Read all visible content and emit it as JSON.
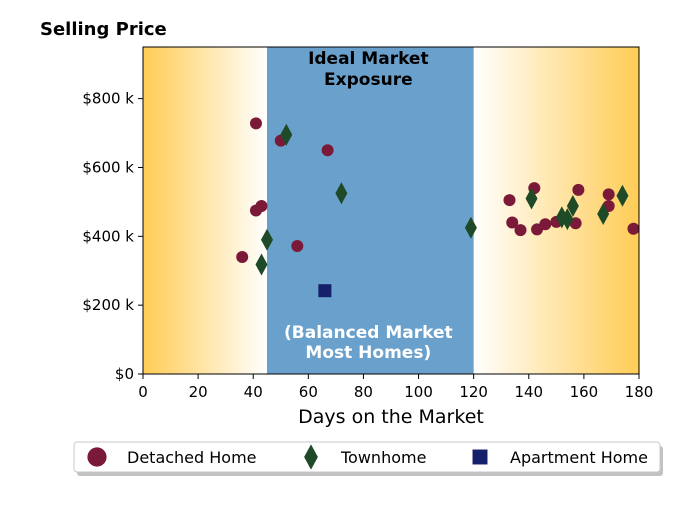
{
  "chart_data": {
    "type": "scatter",
    "title": "Selling Price",
    "xlabel": "Days on the Market",
    "ylabel": "",
    "xlim": [
      0,
      180
    ],
    "ylim": [
      0,
      950000
    ],
    "x_ticks": [
      0,
      20,
      40,
      60,
      80,
      100,
      120,
      140,
      160,
      180
    ],
    "x_tick_labels": [
      "0",
      "20",
      "40",
      "60",
      "80",
      "100",
      "120",
      "140",
      "160",
      "180"
    ],
    "y_ticks": [
      0,
      200000,
      400000,
      600000,
      800000
    ],
    "y_tick_labels": [
      "$0",
      "$200 k",
      "$400 k",
      "$600 k",
      "$800 k"
    ],
    "grid": false,
    "legend_position": "bottom",
    "shaded_region": {
      "x_range": [
        45,
        120
      ],
      "color": "#6aa0cc",
      "label_top": [
        "Ideal Market",
        "Exposure"
      ],
      "label_bottom": [
        "(Balanced Market",
        "Most Homes)"
      ]
    },
    "background_gradient": {
      "edge_color": "#ffcc55",
      "center_color": "#ffffff"
    },
    "series": [
      {
        "name": "Detached Home",
        "marker": "circle",
        "color": "#7b1a38",
        "points": [
          [
            36,
            340000
          ],
          [
            41,
            728000
          ],
          [
            41,
            475000
          ],
          [
            43,
            488000
          ],
          [
            50,
            678000
          ],
          [
            56,
            372000
          ],
          [
            67,
            650000
          ],
          [
            133,
            505000
          ],
          [
            134,
            440000
          ],
          [
            137,
            418000
          ],
          [
            142,
            540000
          ],
          [
            143,
            420000
          ],
          [
            146,
            435000
          ],
          [
            150,
            442000
          ],
          [
            157,
            438000
          ],
          [
            158,
            535000
          ],
          [
            169,
            522000
          ],
          [
            169,
            488000
          ],
          [
            178,
            422000
          ]
        ]
      },
      {
        "name": "Townhome",
        "marker": "diamond",
        "color": "#1e4a28",
        "points": [
          [
            43,
            318000
          ],
          [
            45,
            390000
          ],
          [
            52,
            695000
          ],
          [
            72,
            525000
          ],
          [
            119,
            425000
          ],
          [
            141,
            510000
          ],
          [
            152,
            455000
          ],
          [
            154,
            450000
          ],
          [
            156,
            488000
          ],
          [
            167,
            465000
          ],
          [
            174,
            518000
          ]
        ]
      },
      {
        "name": "Apartment Home",
        "marker": "square",
        "color": "#14206a",
        "points": [
          [
            66,
            242000
          ]
        ]
      }
    ]
  }
}
